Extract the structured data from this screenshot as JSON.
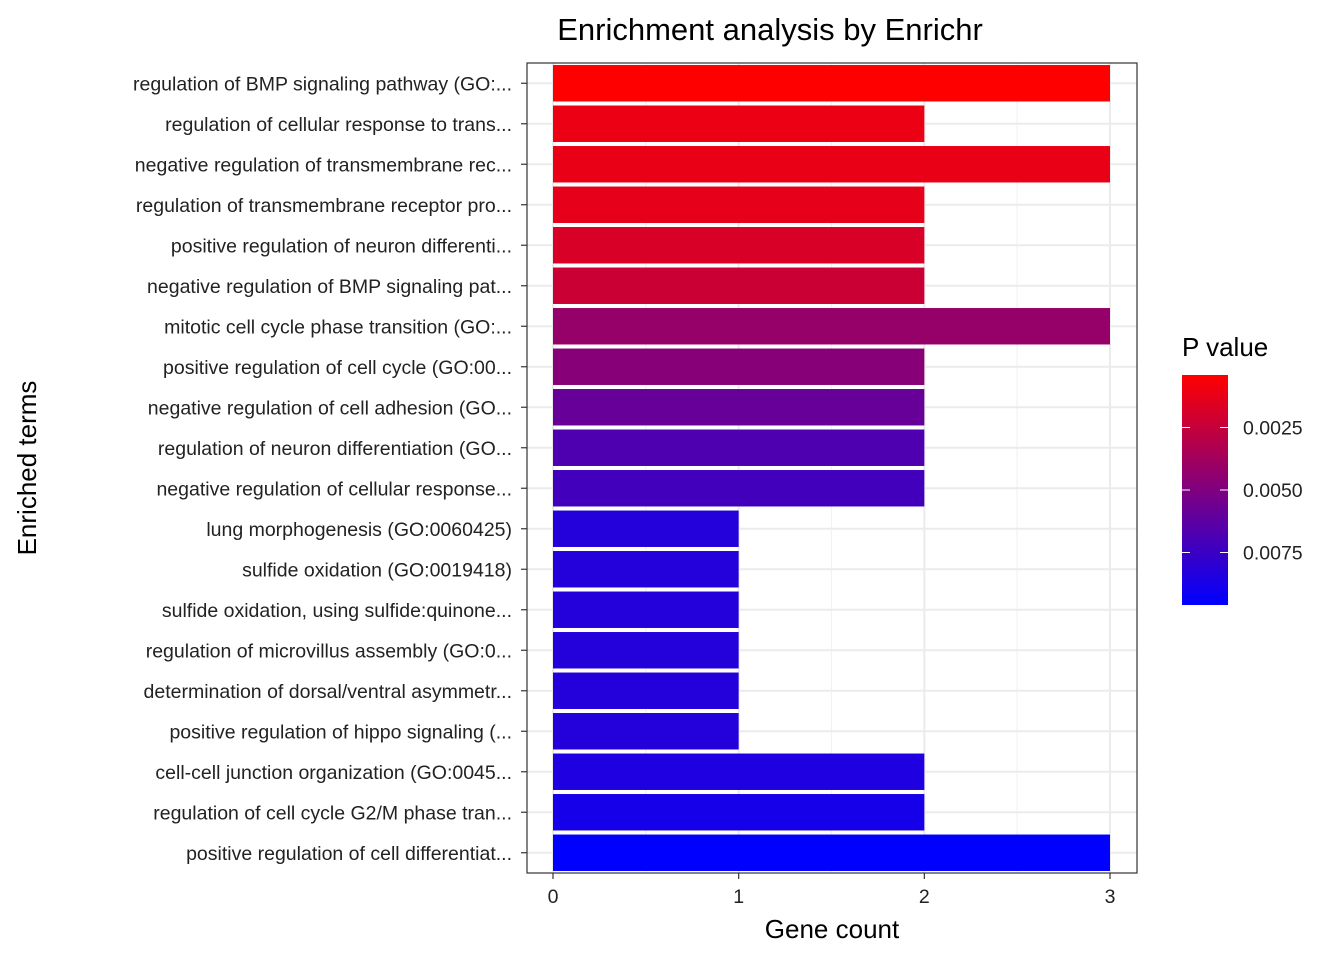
{
  "chart_data": {
    "type": "bar",
    "orientation": "horizontal",
    "title": "Enrichment analysis by Enrichr",
    "xlabel": "Gene count",
    "ylabel": "Enriched terms",
    "xlim": [
      0,
      3
    ],
    "x_ticks": [
      0,
      1,
      2,
      3
    ],
    "grid": true,
    "legend": {
      "title": "P value",
      "position": "right",
      "ticks": [
        {
          "value": 0.0025,
          "label": "0.0025"
        },
        {
          "value": 0.005,
          "label": "0.0050"
        },
        {
          "value": 0.0075,
          "label": "0.0075"
        }
      ],
      "range": [
        0.0004,
        0.0096
      ],
      "low_color": "#ff0000",
      "high_color": "#0000ff"
    },
    "categories": [
      "regulation of BMP signaling pathway (GO:...",
      "regulation of cellular response to trans...",
      "negative regulation of transmembrane rec...",
      "regulation of transmembrane receptor pro...",
      "positive regulation of neuron differenti...",
      "negative regulation of BMP signaling pat...",
      "mitotic cell cycle phase transition (GO:...",
      "positive regulation of cell cycle (GO:00...",
      "negative regulation of cell adhesion (GO...",
      "regulation of neuron differentiation (GO...",
      "negative regulation of cellular response...",
      "lung morphogenesis (GO:0060425)",
      "sulfide oxidation (GO:0019418)",
      "sulfide oxidation, using sulfide:quinone...",
      "regulation of microvillus assembly (GO:0...",
      "determination of dorsal/ventral asymmetr...",
      "positive regulation of hippo signaling (...",
      "cell-cell junction organization (GO:0045...",
      "regulation of cell cycle G2/M phase tran...",
      "positive regulation of cell differentiat..."
    ],
    "values": [
      3,
      2,
      3,
      2,
      2,
      2,
      3,
      2,
      2,
      2,
      2,
      1,
      1,
      1,
      1,
      1,
      1,
      2,
      2,
      3
    ],
    "p_values": [
      0.0004,
      0.0011,
      0.0012,
      0.0013,
      0.0018,
      0.0023,
      0.0042,
      0.0047,
      0.0059,
      0.0068,
      0.0072,
      0.0083,
      0.0083,
      0.0083,
      0.0083,
      0.0083,
      0.0083,
      0.0085,
      0.0088,
      0.0096
    ]
  }
}
